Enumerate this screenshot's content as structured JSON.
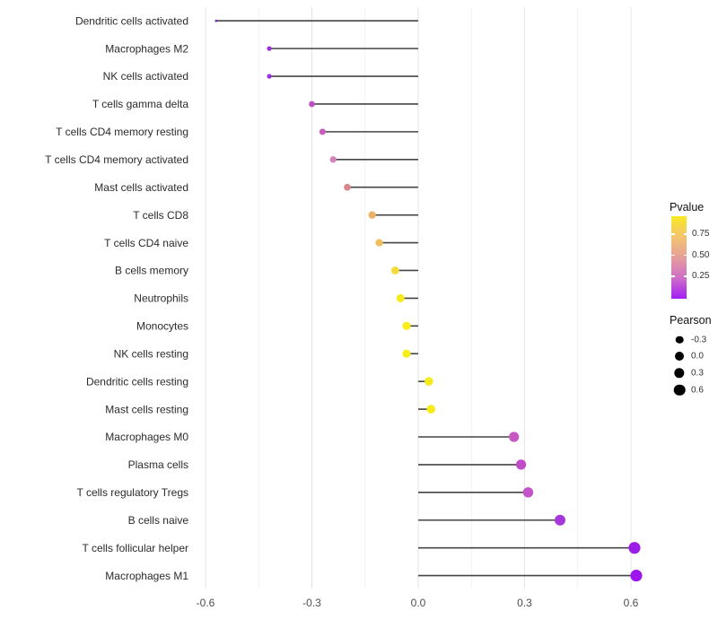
{
  "chart_data": {
    "type": "scatter",
    "subtype": "lollipop",
    "title": "",
    "xlabel": "",
    "ylabel": "",
    "xlim": [
      -0.63,
      0.68
    ],
    "grid": true,
    "x_ticks": [
      -0.6,
      -0.3,
      0.0,
      0.3,
      0.6
    ],
    "x_tick_labels": [
      "-0.6",
      "-0.3",
      "0.0",
      "0.3",
      "0.6"
    ],
    "x_minor_ticks": [
      -0.45,
      -0.15,
      0.15,
      0.45
    ],
    "points": [
      {
        "label": "Dendritic cells activated",
        "pearson": -0.57,
        "color": "#7B22D1"
      },
      {
        "label": "Macrophages M2",
        "pearson": -0.42,
        "color": "#9934DA"
      },
      {
        "label": "NK cells activated",
        "pearson": -0.42,
        "color": "#9934DA"
      },
      {
        "label": "T cells gamma delta",
        "pearson": -0.3,
        "color": "#C04FC3"
      },
      {
        "label": "T cells CD4 memory resting",
        "pearson": -0.27,
        "color": "#C75DBE"
      },
      {
        "label": "T cells CD4 memory activated",
        "pearson": -0.24,
        "color": "#D383B7"
      },
      {
        "label": "Mast cells activated",
        "pearson": -0.2,
        "color": "#D9868D"
      },
      {
        "label": "T cells CD8",
        "pearson": -0.13,
        "color": "#ECB264"
      },
      {
        "label": "T cells CD4 naive",
        "pearson": -0.11,
        "color": "#EFBE5E"
      },
      {
        "label": "B cells memory",
        "pearson": -0.065,
        "color": "#F2DC3C"
      },
      {
        "label": "Neutrophils",
        "pearson": -0.05,
        "color": "#F7EB1D"
      },
      {
        "label": "Monocytes",
        "pearson": -0.033,
        "color": "#F8ED16"
      },
      {
        "label": "NK cells resting",
        "pearson": -0.033,
        "color": "#F8ED16"
      },
      {
        "label": "Dendritic cells resting",
        "pearson": 0.03,
        "color": "#F6EA1F"
      },
      {
        "label": "Mast cells resting",
        "pearson": 0.036,
        "color": "#F7EC18"
      },
      {
        "label": "Macrophages M0",
        "pearson": 0.27,
        "color": "#C757C3"
      },
      {
        "label": "Plasma cells",
        "pearson": 0.29,
        "color": "#C14CC7"
      },
      {
        "label": "T cells regulatory  Tregs",
        "pearson": 0.31,
        "color": "#C352CB"
      },
      {
        "label": "B cells naive",
        "pearson": 0.4,
        "color": "#A637DB"
      },
      {
        "label": "T cells follicular helper",
        "pearson": 0.61,
        "color": "#9D1DE8"
      },
      {
        "label": "Macrophages M1",
        "pearson": 0.615,
        "color": "#9D14EF"
      }
    ],
    "legends": {
      "pvalue": {
        "title": "Pvalue",
        "tick_labels": [
          "0.75",
          "0.50",
          "0.25"
        ],
        "gradient_top_to_bottom": [
          "#F9E921",
          "#F3C46F",
          "#E69E9B",
          "#CF6EC8",
          "#A21FF3"
        ]
      },
      "pearson": {
        "title": "Pearson",
        "entries": [
          {
            "label": "-0.3",
            "r": 4.3
          },
          {
            "label": "0.0",
            "r": 5.0
          },
          {
            "label": "0.3",
            "r": 5.7
          },
          {
            "label": "0.6",
            "r": 6.3
          }
        ],
        "dot_color": "#000000"
      }
    },
    "style": {
      "stem_color": "#444444",
      "stem_width": 1.6,
      "grid_major_color": "#E4E4E4",
      "grid_minor_color": "#F2F2F2",
      "axis_text_color": "#4D4D4D",
      "category_text_color": "#2B2B2B"
    }
  }
}
